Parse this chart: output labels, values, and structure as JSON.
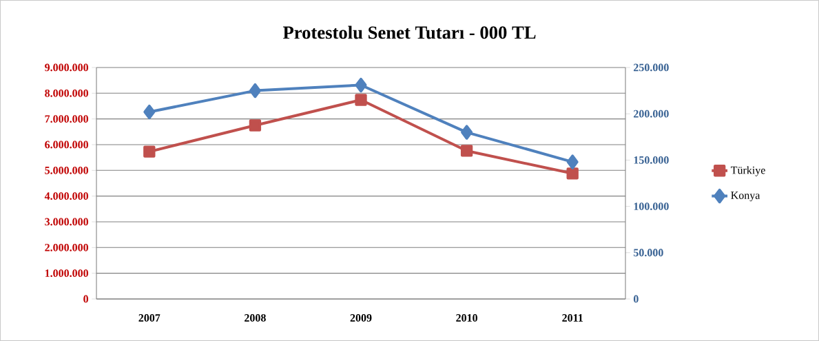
{
  "chart_data": {
    "type": "line",
    "title": "Protestolu Senet Tutarı - 000 TL",
    "categories": [
      "2007",
      "2008",
      "2009",
      "2010",
      "2011"
    ],
    "series": [
      {
        "name": "Türkiye",
        "color": "#c0504d",
        "marker": "square",
        "values": [
          5730000,
          6750000,
          7740000,
          5760000,
          4880000
        ]
      },
      {
        "name": "Konya",
        "color": "#4f81bd",
        "marker": "diamond",
        "axis": "y2",
        "values": [
          202000,
          225000,
          231000,
          180000,
          148000
        ]
      }
    ],
    "ylim": [
      0,
      9000000
    ],
    "yticks": [
      0,
      {
        "value": 1000000,
        "label": "1.000.000"
      },
      {
        "value": 2000000,
        "label": "2.000.000"
      },
      {
        "value": 3000000,
        "label": "3.000.000"
      },
      {
        "value": 4000000,
        "label": "4.000.000"
      },
      {
        "value": 5000000,
        "label": "5.000.000"
      },
      {
        "value": 6000000,
        "label": "6.000.000"
      },
      {
        "value": 7000000,
        "label": "7.000.000"
      },
      {
        "value": 8000000,
        "label": "8.000.000"
      },
      {
        "value": 9000000,
        "label": "9.000.000"
      }
    ],
    "y2lim": [
      0,
      250000
    ],
    "y2ticks": [
      0,
      {
        "value": 50000,
        "label": "50.000"
      },
      {
        "value": 100000,
        "label": "100.000"
      },
      {
        "value": 150000,
        "label": "150.000"
      },
      {
        "value": 200000,
        "label": "200.000"
      },
      {
        "value": 250000,
        "label": "250.000"
      }
    ],
    "grid": "y",
    "legend": "right",
    "line_style": "solid"
  }
}
